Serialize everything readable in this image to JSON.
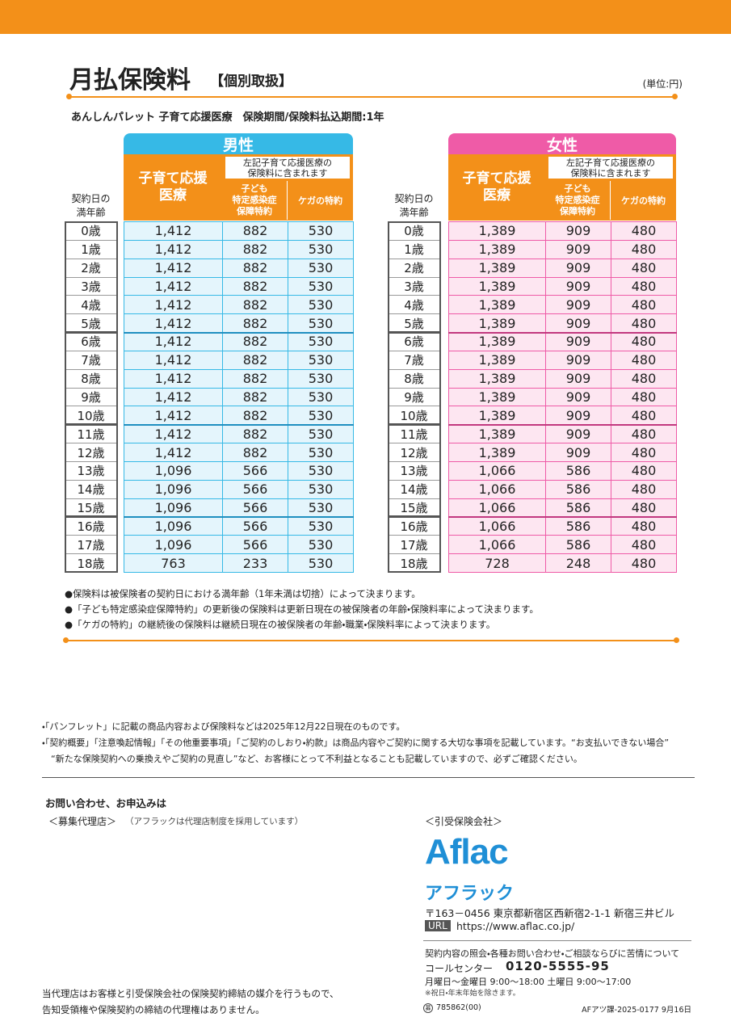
{
  "header": {
    "title": "月払保険料",
    "title_suffix": "【個別取扱】",
    "unit": "(単位:円)",
    "subtitle": "あんしんパレット 子育て応援医療　保険期間/保険料払込期間:1年"
  },
  "tables": [
    {
      "label": "男性",
      "age_header": [
        "契約日の",
        "満年齢"
      ],
      "col_main": [
        "子育て応援",
        "医療"
      ],
      "col_group": [
        "左記子育て応援医療の",
        "保険料に含まれます"
      ],
      "col_sub1": [
        "子ども",
        "特定感染症",
        "保障特約"
      ],
      "col_sub2": "ケガの特約",
      "rows": [
        [
          "0歳",
          "1,412",
          "882",
          "530"
        ],
        [
          "1歳",
          "1,412",
          "882",
          "530"
        ],
        [
          "2歳",
          "1,412",
          "882",
          "530"
        ],
        [
          "3歳",
          "1,412",
          "882",
          "530"
        ],
        [
          "4歳",
          "1,412",
          "882",
          "530"
        ],
        [
          "5歳",
          "1,412",
          "882",
          "530"
        ],
        [
          "6歳",
          "1,412",
          "882",
          "530"
        ],
        [
          "7歳",
          "1,412",
          "882",
          "530"
        ],
        [
          "8歳",
          "1,412",
          "882",
          "530"
        ],
        [
          "9歳",
          "1,412",
          "882",
          "530"
        ],
        [
          "10歳",
          "1,412",
          "882",
          "530"
        ],
        [
          "11歳",
          "1,412",
          "882",
          "530"
        ],
        [
          "12歳",
          "1,412",
          "882",
          "530"
        ],
        [
          "13歳",
          "1,096",
          "566",
          "530"
        ],
        [
          "14歳",
          "1,096",
          "566",
          "530"
        ],
        [
          "15歳",
          "1,096",
          "566",
          "530"
        ],
        [
          "16歳",
          "1,096",
          "566",
          "530"
        ],
        [
          "17歳",
          "1,096",
          "566",
          "530"
        ],
        [
          "18歳",
          "763",
          "233",
          "530"
        ]
      ]
    },
    {
      "label": "女性",
      "age_header": [
        "契約日の",
        "満年齢"
      ],
      "col_main": [
        "子育て応援",
        "医療"
      ],
      "col_group": [
        "左記子育て応援医療の",
        "保険料に含まれます"
      ],
      "col_sub1": [
        "子ども",
        "特定感染症",
        "保障特約"
      ],
      "col_sub2": "ケガの特約",
      "rows": [
        [
          "0歳",
          "1,389",
          "909",
          "480"
        ],
        [
          "1歳",
          "1,389",
          "909",
          "480"
        ],
        [
          "2歳",
          "1,389",
          "909",
          "480"
        ],
        [
          "3歳",
          "1,389",
          "909",
          "480"
        ],
        [
          "4歳",
          "1,389",
          "909",
          "480"
        ],
        [
          "5歳",
          "1,389",
          "909",
          "480"
        ],
        [
          "6歳",
          "1,389",
          "909",
          "480"
        ],
        [
          "7歳",
          "1,389",
          "909",
          "480"
        ],
        [
          "8歳",
          "1,389",
          "909",
          "480"
        ],
        [
          "9歳",
          "1,389",
          "909",
          "480"
        ],
        [
          "10歳",
          "1,389",
          "909",
          "480"
        ],
        [
          "11歳",
          "1,389",
          "909",
          "480"
        ],
        [
          "12歳",
          "1,389",
          "909",
          "480"
        ],
        [
          "13歳",
          "1,066",
          "586",
          "480"
        ],
        [
          "14歳",
          "1,066",
          "586",
          "480"
        ],
        [
          "15歳",
          "1,066",
          "586",
          "480"
        ],
        [
          "16歳",
          "1,066",
          "586",
          "480"
        ],
        [
          "17歳",
          "1,066",
          "586",
          "480"
        ],
        [
          "18歳",
          "728",
          "248",
          "480"
        ]
      ]
    }
  ],
  "notes": [
    "●保険料は被保険者の契約日における満年齢（1年未満は切捨）によって決まります。",
    "●「子ども特定感染症保障特約」の更新後の保険料は更新日現在の被保険者の年齢・保険料率によって決まります。",
    "●「ケガの特約」の継続後の保険料は継続日現在の被保険者の年齢・職業・保険料率によって決まります。"
  ],
  "disclaimers": [
    "・「パンフレット」に記載の商品内容および保険料などは2025年12月22日現在のものです。",
    "・「契約概要」「注意喚起情報」「その他重要事項」「ご契約のしおり・約款」は商品内容やご契約に関する大切な事項を記載しています。“お支払いできない場合”",
    "　“新たな保険契約への乗換えやご契約の見直し”など、お客様にとって不利益となることも記載していますので、必ずご確認ください。"
  ],
  "contact": {
    "heading": "お問い合わせ、お申込みは",
    "agency_label": "＜募集代理店＞",
    "agency_note": "（アフラックは代理店制度を採用しています）",
    "insurer_label": "＜引受保険会社＞",
    "logo": "Aflac",
    "logo_kana": "アフラック",
    "address": "〒163－0456 東京都新宿区西新宿2-1-1 新宿三井ビル",
    "url_label": "URL",
    "url": "https://www.aflac.co.jp/",
    "inquiry": "契約内容の照会・各種お問い合わせ・ご相談ならびに苦情について",
    "call_center": "コールセンター",
    "phone": "0120-5555-95",
    "hours": "月曜日～金曜日 9:00～18:00  土曜日 9:00～17:00",
    "holiday": "※祝日・年末年始を除きます。",
    "agency_disclaimer": [
      "当代理店はお客様と引受保険会社の保険契約締結の媒介を行うもので、",
      "告知受領権や保険契約の締結の代理権はありません。"
    ],
    "code_mark": "募",
    "code": "785862(00)",
    "doc_id": "AFアツ課-2025-0177 9月16日"
  }
}
